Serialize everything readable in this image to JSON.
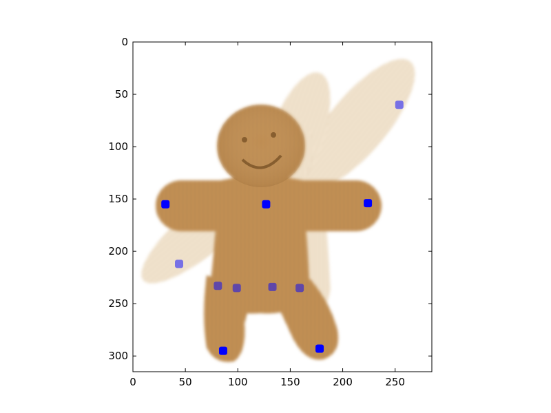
{
  "chart_data": {
    "type": "scatter",
    "title": "",
    "xlabel": "",
    "ylabel": "",
    "xlim": [
      0,
      285
    ],
    "ylim": [
      315,
      0
    ],
    "y_inverted": true,
    "grid": false,
    "legend": "none",
    "background_image": "gingerbread-man-warp-overlay",
    "xticks": [
      0,
      50,
      100,
      150,
      200,
      250
    ],
    "xtick_labels": [
      "0",
      "50",
      "100",
      "150",
      "200",
      "250"
    ],
    "yticks": [
      0,
      50,
      100,
      150,
      200,
      250,
      300
    ],
    "ytick_labels": [
      "0",
      "50",
      "100",
      "150",
      "200",
      "250",
      "300"
    ],
    "series": [
      {
        "color": "#0000ff",
        "opacity": 1.0,
        "points": [
          {
            "x": 31,
            "y": 155
          },
          {
            "x": 127,
            "y": 155
          },
          {
            "x": 224,
            "y": 154
          },
          {
            "x": 86,
            "y": 295
          },
          {
            "x": 178,
            "y": 293
          }
        ]
      },
      {
        "color": "#0000ff",
        "opacity": 0.5,
        "points": [
          {
            "x": 254,
            "y": 60
          },
          {
            "x": 44,
            "y": 212
          },
          {
            "x": 81,
            "y": 233
          },
          {
            "x": 99,
            "y": 235
          },
          {
            "x": 133,
            "y": 234
          },
          {
            "x": 159,
            "y": 235
          }
        ]
      }
    ]
  }
}
